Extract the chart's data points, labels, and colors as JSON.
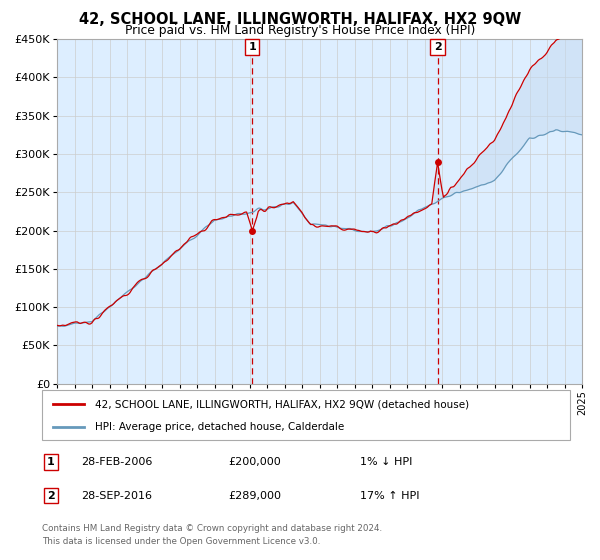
{
  "title": "42, SCHOOL LANE, ILLINGWORTH, HALIFAX, HX2 9QW",
  "subtitle": "Price paid vs. HM Land Registry's House Price Index (HPI)",
  "ylim": [
    0,
    450000
  ],
  "yticks": [
    0,
    50000,
    100000,
    150000,
    200000,
    250000,
    300000,
    350000,
    400000,
    450000
  ],
  "ytick_labels": [
    "£0",
    "£50K",
    "£100K",
    "£150K",
    "£200K",
    "£250K",
    "£300K",
    "£350K",
    "£400K",
    "£450K"
  ],
  "xlim_start": 1995,
  "xlim_end": 2025,
  "plot_bg_color": "#ddeeff",
  "grid_color": "#cccccc",
  "line1_color": "#cc0000",
  "line2_color": "#6699bb",
  "fill_color": "#c5daf0",
  "vline_color": "#cc0000",
  "legend1": "42, SCHOOL LANE, ILLINGWORTH, HALIFAX, HX2 9QW (detached house)",
  "legend2": "HPI: Average price, detached house, Calderdale",
  "ann1_num": "1",
  "ann1_date": "28-FEB-2006",
  "ann1_price": "£200,000",
  "ann1_hpi": "1% ↓ HPI",
  "ann2_num": "2",
  "ann2_date": "28-SEP-2016",
  "ann2_price": "£289,000",
  "ann2_hpi": "17% ↑ HPI",
  "footer_line1": "Contains HM Land Registry data © Crown copyright and database right 2024.",
  "footer_line2": "This data is licensed under the Open Government Licence v3.0.",
  "vline1_year": 2006.15,
  "vline2_year": 2016.75,
  "sale1_x": 2006.15,
  "sale1_y": 200000,
  "sale2_x": 2016.75,
  "sale2_y": 289000
}
